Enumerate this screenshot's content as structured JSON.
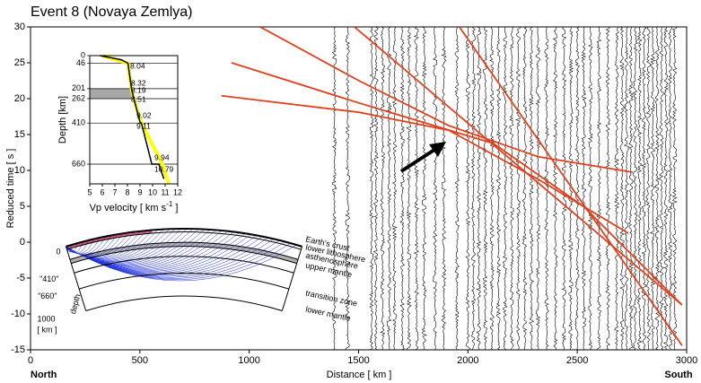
{
  "chart_data": [
    {
      "type": "record-section",
      "title": "Event 8 (Novaya Zemlya)",
      "x_label": "Distance [ km ]",
      "y_label": "Reduced time [ s ]",
      "annotations": [
        "North",
        "South"
      ],
      "xlim": [
        0,
        3000
      ],
      "ylim": [
        -15,
        30
      ],
      "xticks": [
        0,
        500,
        1000,
        1500,
        2000,
        2500,
        3000
      ],
      "yticks": [
        -15,
        -10,
        -5,
        0,
        5,
        10,
        15,
        20,
        25,
        30
      ],
      "trace_color": "#000000",
      "traces": [
        1390,
        1450,
        1560,
        1580,
        1610,
        1640,
        1665,
        1700,
        1730,
        1765,
        1800,
        1850,
        1890,
        1950,
        2000,
        2025,
        2050,
        2080,
        2110,
        2140,
        2170,
        2200,
        2230,
        2260,
        2290,
        2320,
        2360,
        2400,
        2440,
        2470,
        2500,
        2530,
        2560,
        2600,
        2640,
        2680,
        2705,
        2725,
        2745,
        2765,
        2785,
        2805,
        2825,
        2845,
        2865,
        2885,
        2905,
        2925,
        2945
      ],
      "series": [
        {
          "color": "#e2401b",
          "x": [
            1050,
            1502,
            1912,
            2322,
            2753
          ],
          "values": [
            30,
            22.5,
            16.25,
            11.9,
            9.75
          ]
        },
        {
          "color": "#e2401b",
          "x": [
            919,
            1502,
            2117,
            2528,
            2979
          ],
          "values": [
            25,
            19.4,
            13.75,
            5,
            -8.75
          ]
        },
        {
          "color": "#e2401b",
          "x": [
            874,
            1502,
            1912,
            2322,
            2733
          ],
          "values": [
            20.4,
            18.1,
            15.6,
            8.75,
            1.25
          ]
        },
        {
          "color": "#e2401b",
          "x": [
            1481,
            2979
          ],
          "values": [
            30,
            -8.75
          ]
        },
        {
          "color": "#e2401b",
          "x": [
            1961,
            2979
          ],
          "values": [
            30,
            -14.4
          ]
        }
      ]
    },
    {
      "type": "velocity-profile",
      "x_label": [
        "Vp velocity  [ km s",
        "-1",
        " ]"
      ],
      "y_label": "Depth [km]",
      "xlim": [
        5,
        12
      ],
      "xticks": [
        5,
        6,
        7,
        8,
        9,
        10,
        11,
        12
      ],
      "ylim": [
        0,
        780
      ],
      "yticks": [
        0,
        46,
        201,
        262,
        410,
        660
      ],
      "layer_color": "#a8a8a8",
      "series": [
        {
          "color": "#ffff00",
          "depth": [
            0,
            46,
            201,
            262,
            410,
            660,
            780
          ],
          "values": [
            6.0,
            8.04,
            8.32,
            8.51,
            9.11,
            10.79,
            11.3
          ]
        },
        {
          "color": "#000000",
          "depth": [
            0,
            25,
            46,
            201,
            201,
            262,
            410,
            410,
            660,
            660,
            750
          ],
          "values": [
            5.8,
            7.5,
            8.04,
            8.32,
            8.32,
            8.51,
            9.02,
            9.11,
            9.94,
            10.5,
            10.9
          ]
        }
      ],
      "value_labels": [
        8.04,
        8.32,
        8.19,
        8.51,
        9.02,
        9.11,
        9.94,
        10.79
      ]
    },
    {
      "type": "earth-section",
      "layers": [
        "Earth's crust",
        "lower lithosphere",
        "asthenosphere",
        "upper mantle",
        "transition zone",
        "lower mantle"
      ],
      "depth_labels": [
        "0",
        "\"410\"",
        "\"660\"",
        "1000"
      ],
      "depth_unit": "[ km ]",
      "depth_title": "depth"
    }
  ]
}
